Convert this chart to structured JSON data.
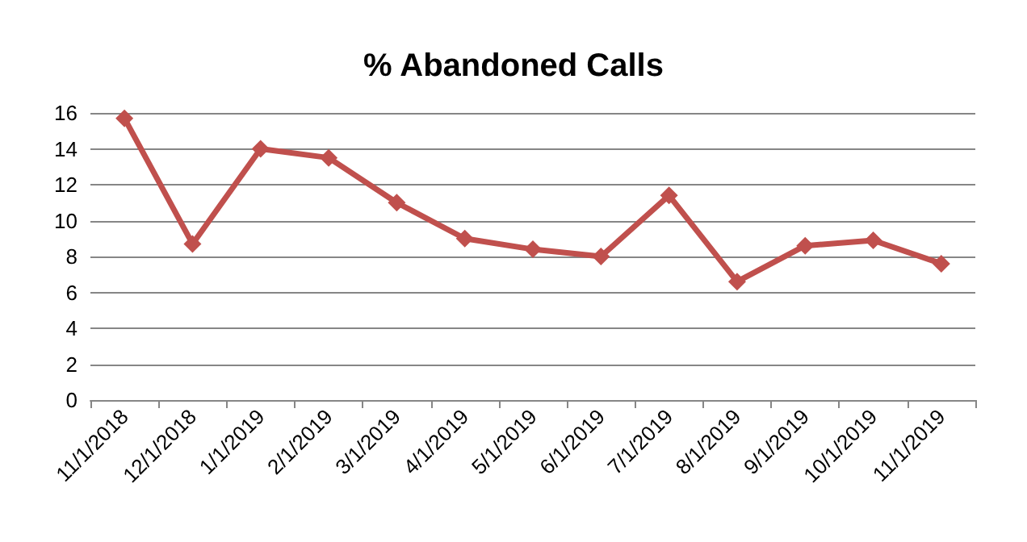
{
  "chart_data": {
    "type": "line",
    "title": "% Abandoned Calls",
    "categories": [
      "11/1/2018",
      "12/1/2018",
      "1/1/2019",
      "2/1/2019",
      "3/1/2019",
      "4/1/2019",
      "5/1/2019",
      "6/1/2019",
      "7/1/2019",
      "8/1/2019",
      "9/1/2019",
      "10/1/2019",
      "11/1/2019"
    ],
    "series": [
      {
        "color": "#c0504d",
        "values": [
          15.7,
          8.7,
          14.0,
          13.5,
          11.0,
          9.0,
          8.4,
          8.0,
          11.4,
          6.6,
          8.6,
          8.9,
          7.6
        ]
      }
    ],
    "ylim": [
      0,
      16
    ],
    "yticks": [
      0,
      2,
      4,
      6,
      8,
      10,
      12,
      14,
      16
    ],
    "grid": "y",
    "marker": "diamond",
    "line_style": "solid"
  }
}
